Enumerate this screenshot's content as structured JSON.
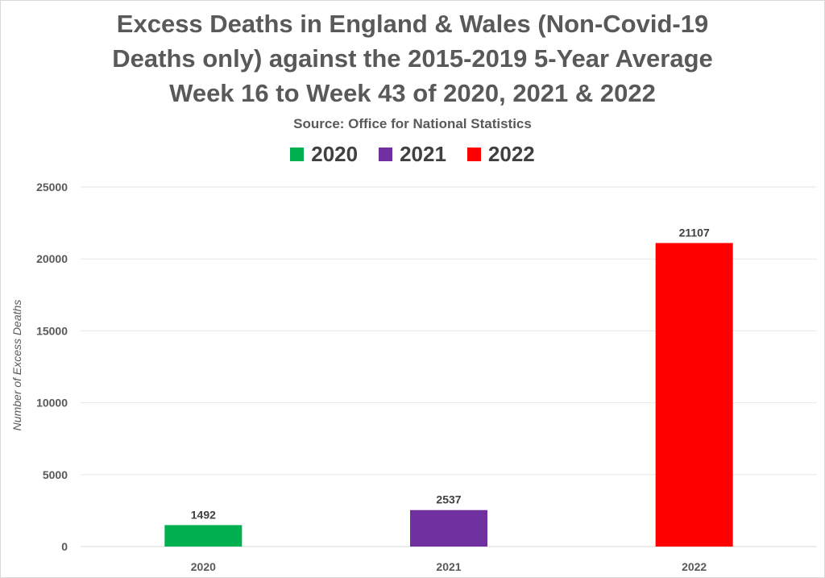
{
  "chart_data": {
    "type": "bar",
    "title_lines": [
      "Excess Deaths in England & Wales (Non-Covid-19",
      "Deaths only) against the 2015-2019 5-Year Average",
      "Week 16 to Week 43 of 2020, 2021 & 2022"
    ],
    "subtitle": "Source: Office for National Statistics",
    "ylabel": "Number of Excess Deaths",
    "xlabel": "",
    "ylim": [
      0,
      25000
    ],
    "yticks": [
      0,
      5000,
      10000,
      15000,
      20000,
      25000
    ],
    "grid": true,
    "legend_position": "top",
    "categories": [
      "2020",
      "2021",
      "2022"
    ],
    "values": [
      1492,
      2537,
      21107
    ],
    "data_labels": [
      "1492",
      "2537",
      "21107"
    ],
    "legend": [
      {
        "label": "2020",
        "color": "#00b050"
      },
      {
        "label": "2021",
        "color": "#7030a0"
      },
      {
        "label": "2022",
        "color": "#ff0000"
      }
    ],
    "colors": [
      "#00b050",
      "#7030a0",
      "#ff0000"
    ]
  }
}
